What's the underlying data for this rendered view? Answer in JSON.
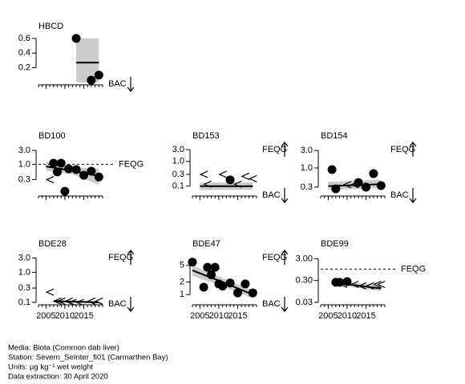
{
  "chart_data": [
    {
      "type": "scatter",
      "title": "HBCD",
      "log": false,
      "ylim": [
        0,
        0.6
      ],
      "yticks": [
        0.6,
        0.4,
        0.2
      ],
      "xlim": [
        2003,
        2020
      ],
      "xticks": [
        2005,
        2010,
        2015
      ],
      "show_xlabels": false,
      "points": {
        "x": [
          2013,
          2017,
          2019
        ],
        "values": [
          0.6,
          0.03,
          0.1
        ],
        "censored": [
          false,
          false,
          false
        ]
      },
      "trend": {
        "x": [
          2013,
          2019
        ],
        "values": [
          0.27,
          0.27
        ],
        "lower": [
          0,
          0
        ],
        "upper": [
          0.6,
          0.6
        ]
      },
      "thresholds": [],
      "offscale": [
        {
          "label": "BAC",
          "direction": "down"
        }
      ]
    },
    {
      "type": "scatter",
      "title": "BD100",
      "log": true,
      "ylim": [
        0.1,
        3.6
      ],
      "yticks": [
        {
          "value": 3,
          "label": "3.0"
        },
        {
          "value": 1,
          "label": "1.0"
        },
        0.3
      ],
      "xlim": [
        2003,
        2020
      ],
      "xticks": [
        2005,
        2010,
        2015
      ],
      "show_xlabels": false,
      "points": {
        "x": [
          2006,
          2007,
          2008,
          2009,
          2010,
          2011,
          2013,
          2015,
          2017,
          2019
        ],
        "values": [
          0.3,
          1.09,
          0.55,
          1.09,
          0.12,
          0.7,
          0.66,
          0.42,
          0.58,
          0.37
        ],
        "censored": [
          true,
          false,
          false,
          false,
          false,
          false,
          false,
          false,
          false,
          false
        ]
      },
      "trend": {
        "x": [
          2005,
          2012,
          2019
        ],
        "values": [
          0.85,
          0.6,
          0.4
        ],
        "lower": [
          0.6,
          0.45,
          0.2
        ],
        "upper": [
          1.2,
          0.8,
          0.7
        ]
      },
      "thresholds": [
        {
          "label": "FEQG",
          "value": 1
        }
      ],
      "offscale": []
    },
    {
      "type": "scatter",
      "title": "BD153",
      "log": true,
      "ylim": [
        0.05,
        3.5
      ],
      "yticks": [
        {
          "value": 3,
          "label": "3.0"
        },
        {
          "value": 1,
          "label": "1.0"
        },
        0.3,
        0.1
      ],
      "xlim": [
        2003,
        2020
      ],
      "xticks": [
        2005,
        2010,
        2015
      ],
      "show_xlabels": false,
      "points": {
        "x": [
          2006,
          2007,
          2011,
          2013,
          2015,
          2017,
          2019
        ],
        "values": [
          0.3,
          0.12,
          0.3,
          0.18,
          0.12,
          0.25,
          0.2
        ],
        "censored": [
          true,
          true,
          true,
          false,
          true,
          true,
          true
        ]
      },
      "trend": {
        "x": [
          2005,
          2019
        ],
        "values": [
          0.1,
          0.1
        ],
        "lower": [
          0.07,
          0.07
        ],
        "upper": [
          0.14,
          0.14
        ]
      },
      "thresholds": [],
      "offscale": [
        {
          "label": "FEQG",
          "direction": "up"
        },
        {
          "label": "BAC",
          "direction": "down"
        }
      ]
    },
    {
      "type": "scatter",
      "title": "BD154",
      "log": true,
      "ylim": [
        0.2,
        3.5
      ],
      "yticks": [
        {
          "value": 3,
          "label": "3.0"
        },
        {
          "value": 1,
          "label": "1.0"
        },
        0.3
      ],
      "xlim": [
        2003,
        2020
      ],
      "xticks": [
        2005,
        2010,
        2015
      ],
      "show_xlabels": false,
      "points": {
        "x": [
          2006,
          2007,
          2010,
          2012,
          2013,
          2015,
          2017,
          2019
        ],
        "values": [
          0.9,
          0.27,
          0.35,
          0.35,
          0.4,
          0.3,
          0.7,
          0.33
        ],
        "censored": [
          false,
          false,
          true,
          true,
          false,
          false,
          false,
          false
        ]
      },
      "trend": {
        "x": [
          2005,
          2019
        ],
        "values": [
          0.32,
          0.36
        ],
        "lower": [
          0.25,
          0.28
        ],
        "upper": [
          0.42,
          0.48
        ]
      },
      "thresholds": [],
      "offscale": [
        {
          "label": "FEQG",
          "direction": "up"
        },
        {
          "label": "BAC",
          "direction": "down"
        }
      ]
    },
    {
      "type": "scatter",
      "title": "BDE28",
      "log": true,
      "ylim": [
        0.1,
        3.5
      ],
      "yticks": [
        {
          "value": 3,
          "label": "3.0"
        },
        {
          "value": 1,
          "label": "1.0"
        },
        0.3,
        0.1
      ],
      "xlim": [
        2003,
        2020
      ],
      "xticks": [
        2005,
        2010,
        2015
      ],
      "show_xlabels": true,
      "points": {
        "x": [
          2006,
          2008,
          2009,
          2011,
          2012,
          2014,
          2017,
          2019
        ],
        "values": [
          0.22,
          0.11,
          0.11,
          0.11,
          0.1,
          0.1,
          0.11,
          0.11
        ],
        "censored": [
          true,
          true,
          true,
          true,
          true,
          true,
          true,
          true
        ]
      },
      "trend": {
        "x": [
          2007,
          2019
        ],
        "values": [
          0.11,
          0.1
        ],
        "lower": [
          0.1,
          0.1
        ],
        "upper": [
          0.12,
          0.11
        ]
      },
      "thresholds": [],
      "offscale": [
        {
          "label": "FEQG",
          "direction": "up"
        },
        {
          "label": "BAC",
          "direction": "down"
        }
      ]
    },
    {
      "type": "scatter",
      "title": "BDE47",
      "log": true,
      "ylim": [
        0.65,
        8.4
      ],
      "yticks": [
        5,
        2,
        1
      ],
      "xlim": [
        2003,
        2020
      ],
      "xticks": [
        2005,
        2010,
        2015
      ],
      "show_xlabels": true,
      "points": {
        "x": [
          2003,
          2006,
          2007,
          2008,
          2009,
          2010,
          2011,
          2013,
          2015,
          2017,
          2019
        ],
        "values": [
          6,
          1.5,
          4.5,
          3,
          4.5,
          1.8,
          1.6,
          1.9,
          1.1,
          1.8,
          1.1
        ],
        "censored": [
          false,
          false,
          false,
          false,
          false,
          false,
          false,
          false,
          false,
          false,
          false
        ]
      },
      "trend": {
        "x": [
          2003,
          2011,
          2019
        ],
        "values": [
          3.8,
          2,
          1
        ],
        "lower": [
          2.8,
          1.6,
          0.8
        ],
        "upper": [
          5,
          2.5,
          1.3
        ]
      },
      "thresholds": [],
      "offscale": [
        {
          "label": "FEQG",
          "direction": "up"
        },
        {
          "label": "BAC",
          "direction": "down"
        }
      ]
    },
    {
      "type": "scatter",
      "title": "BDE99",
      "log": true,
      "ylim": [
        0.03,
        4
      ],
      "yticks": [
        {
          "value": 3,
          "label": "3.00"
        },
        {
          "value": 0.3,
          "label": "0.30"
        },
        0.03
      ],
      "xlim": [
        2003,
        2020
      ],
      "xticks": [
        2005,
        2010,
        2015
      ],
      "show_xlabels": true,
      "points": {
        "x": [
          2007,
          2008,
          2009,
          2010,
          2012,
          2014,
          2016,
          2018,
          2019
        ],
        "values": [
          0.25,
          0.25,
          0.2,
          0.27,
          0.2,
          0.17,
          0.17,
          0.2,
          0.2
        ],
        "censored": [
          false,
          false,
          true,
          false,
          true,
          true,
          true,
          true,
          true
        ]
      },
      "trend": {
        "x": [
          2006,
          2019
        ],
        "values": [
          0.25,
          0.13
        ],
        "lower": [
          0.2,
          0.1
        ],
        "upper": [
          0.3,
          0.18
        ]
      },
      "thresholds": [
        {
          "label": "FEQG",
          "value": 1
        }
      ],
      "offscale": []
    }
  ],
  "footer": [
    "Media: Biota (Common dab liver)",
    "Station: Severn_SeInter_fi01 (Carmarthen Bay)",
    "Units: µg kg⁻¹ wet weight",
    "Data extraction: 30 April 2020"
  ]
}
